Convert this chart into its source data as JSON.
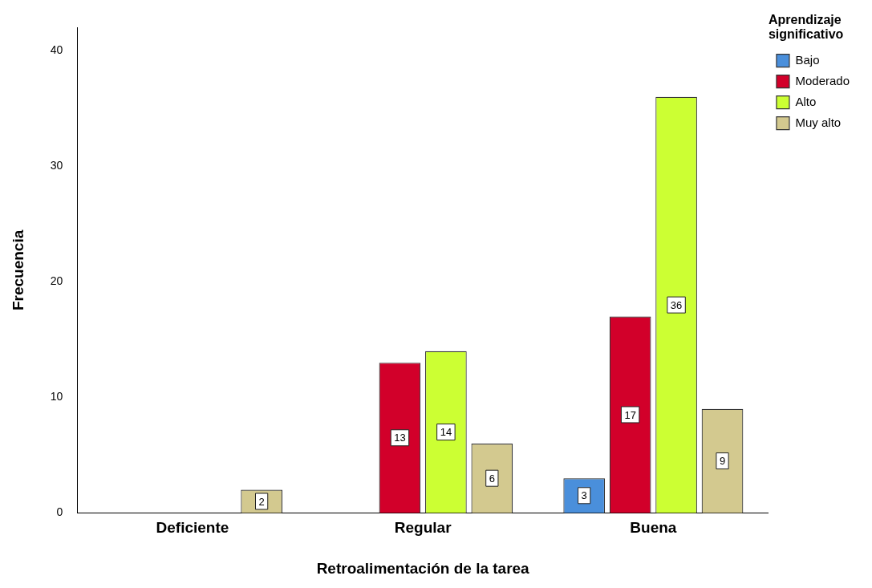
{
  "chart_data": {
    "type": "bar",
    "xlabel": "Retroalimentación de la tarea",
    "ylabel": "Frecuencia",
    "legend_title": "Aprendizaje significativo",
    "categories": [
      "Deficiente",
      "Regular",
      "Buena"
    ],
    "series": [
      {
        "name": "Bajo",
        "color": "#4a8fdb",
        "values": [
          null,
          null,
          3
        ]
      },
      {
        "name": "Moderado",
        "color": "#d2002a",
        "values": [
          null,
          13,
          17
        ]
      },
      {
        "name": "Alto",
        "color": "#ccff33",
        "values": [
          null,
          14,
          36
        ]
      },
      {
        "name": "Muy alto",
        "color": "#d3c98f",
        "values": [
          2,
          6,
          9
        ]
      }
    ],
    "ylim": [
      0,
      42
    ],
    "yticks": [
      0,
      10,
      20,
      30,
      40
    ],
    "grid": false,
    "legend": "top right",
    "data_labels": true
  }
}
